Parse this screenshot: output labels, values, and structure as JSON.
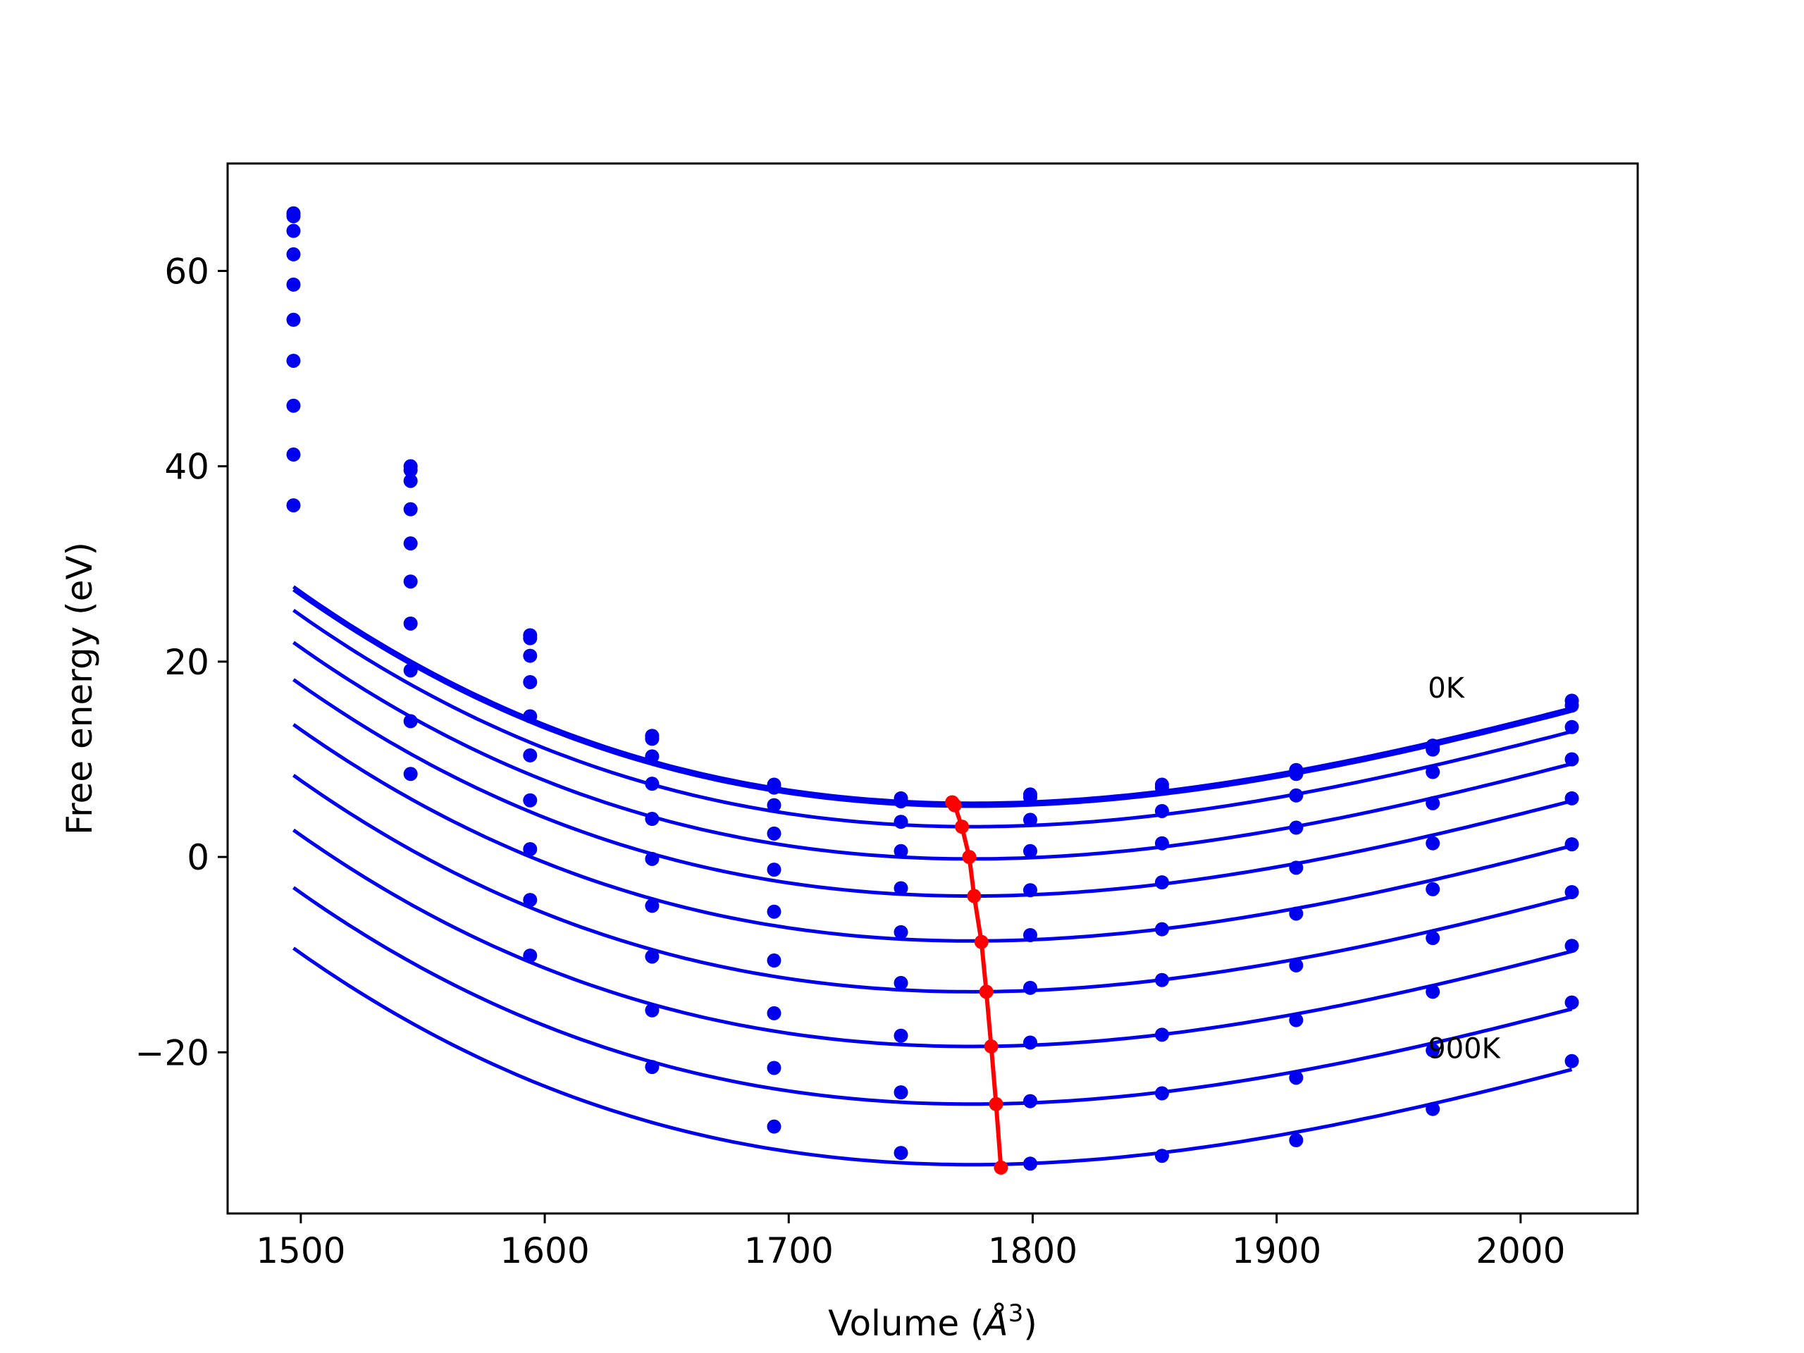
{
  "chart_data": {
    "type": "line",
    "title": "",
    "xlabel": "Volume (",
    "xlabel_symbol": "Å",
    "xlabel_exponent": "3",
    "xlabel_close": ")",
    "ylabel": "Free energy (eV)",
    "xlim": [
      1470,
      2048
    ],
    "ylim": [
      -36.5,
      71
    ],
    "xticks": [
      1500,
      1600,
      1700,
      1800,
      1900,
      2000
    ],
    "yticks": [
      -20,
      0,
      20,
      40,
      60
    ],
    "ytick_labels": [
      "−20",
      "0",
      "20",
      "40",
      "60"
    ],
    "grid": false,
    "legend": "none",
    "annotations": [
      {
        "text": "0K",
        "x": 1962,
        "y": 16.3
      },
      {
        "text": "900K",
        "x": 1962,
        "y": -20.6
      }
    ],
    "volumes": [
      1497,
      1545,
      1594,
      1644,
      1694,
      1746,
      1799,
      1853,
      1908,
      1964,
      2021
    ],
    "series": [
      {
        "color": "#0000ee",
        "points": [
          65.9,
          40.0,
          22.7,
          12.4,
          7.4,
          6.0,
          6.4,
          7.4,
          8.9,
          11.4,
          16.0
        ]
      },
      {
        "color": "#0000ee",
        "points": [
          65.6,
          39.6,
          22.4,
          12.1,
          7.1,
          5.7,
          6.1,
          7.1,
          8.5,
          11.0,
          15.5
        ]
      },
      {
        "color": "#0000ee",
        "points": [
          64.1,
          38.5,
          20.6,
          10.3,
          5.3,
          3.6,
          3.8,
          4.7,
          6.3,
          8.7,
          13.3
        ]
      },
      {
        "color": "#0000ee",
        "points": [
          61.7,
          35.6,
          17.9,
          7.5,
          2.4,
          0.6,
          0.6,
          1.4,
          3.0,
          5.5,
          10.0
        ]
      },
      {
        "color": "#0000ee",
        "points": [
          58.6,
          32.1,
          14.4,
          3.9,
          -1.3,
          -3.2,
          -3.4,
          -2.6,
          -1.1,
          1.4,
          6.0
        ]
      },
      {
        "color": "#0000ee",
        "points": [
          55.0,
          28.2,
          10.4,
          -0.2,
          -5.6,
          -7.7,
          -8.0,
          -7.4,
          -5.8,
          -3.3,
          1.3
        ]
      },
      {
        "color": "#0000ee",
        "points": [
          50.8,
          23.9,
          5.8,
          -5.0,
          -10.6,
          -12.9,
          -13.4,
          -12.6,
          -11.1,
          -8.3,
          -3.6
        ]
      },
      {
        "color": "#0000ee",
        "points": [
          46.2,
          19.1,
          0.8,
          -10.2,
          -16.0,
          -18.3,
          -19.0,
          -18.2,
          -16.7,
          -13.8,
          -9.1
        ]
      },
      {
        "color": "#0000ee",
        "points": [
          41.2,
          13.9,
          -4.4,
          -15.7,
          -21.6,
          -24.1,
          -25.0,
          -24.2,
          -22.6,
          -19.8,
          -14.9
        ]
      },
      {
        "color": "#0000ee",
        "points": [
          36.0,
          8.5,
          -10.1,
          -21.5,
          -27.6,
          -30.3,
          -31.4,
          -30.6,
          -29.0,
          -25.8,
          -20.9
        ]
      }
    ],
    "fit_curves": [
      {
        "color": "#0000ee",
        "a": 0.00022,
        "v0": 1775,
        "vc": 1775,
        "e0": 5.5
      },
      {
        "color": "#0000ee",
        "a": 0.00022,
        "v0": 1775,
        "vc": 1775,
        "e0": 5.2
      },
      {
        "color": "#0000ee",
        "a": 0.00022,
        "v0": 1775,
        "vc": 1775,
        "e0": 3.1
      },
      {
        "color": "#0000ee",
        "a": 0.00022,
        "v0": 1775,
        "vc": 1775,
        "e0": -0.2
      },
      {
        "color": "#0000ee",
        "a": 0.00022,
        "v0": 1775,
        "vc": 1775,
        "e0": -4.0
      },
      {
        "color": "#0000ee",
        "a": 0.00022,
        "v0": 1775,
        "vc": 1775,
        "e0": -8.6
      },
      {
        "color": "#0000ee",
        "a": 0.00022,
        "v0": 1775,
        "vc": 1775,
        "e0": -13.8
      },
      {
        "color": "#0000ee",
        "a": 0.00022,
        "v0": 1775,
        "vc": 1775,
        "e0": -19.4
      },
      {
        "color": "#0000ee",
        "a": 0.00022,
        "v0": 1775,
        "vc": 1775,
        "e0": -25.3
      },
      {
        "color": "#0000ee",
        "a": 0.00022,
        "v0": 1775,
        "vc": 1775,
        "e0": -31.5
      }
    ],
    "minimum_line": {
      "color": "#ff0000",
      "x": [
        1767,
        1768,
        1771,
        1774,
        1776,
        1779,
        1781,
        1783,
        1785,
        1787
      ],
      "y": [
        5.6,
        5.3,
        3.1,
        0.0,
        -4.0,
        -8.7,
        -13.8,
        -19.4,
        -25.3,
        -31.8
      ]
    }
  }
}
